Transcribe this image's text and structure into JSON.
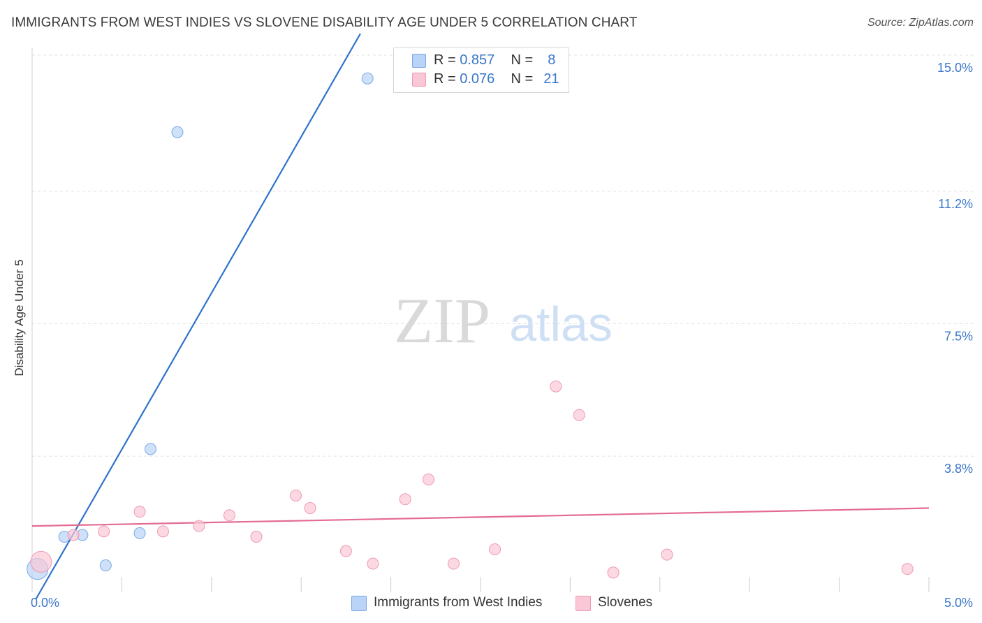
{
  "title": "IMMIGRANTS FROM WEST INDIES VS SLOVENE DISABILITY AGE UNDER 5 CORRELATION CHART",
  "source": "Source: ZipAtlas.com",
  "watermark": {
    "zip": "ZIP",
    "atlas": "atlas"
  },
  "legend": {
    "rows": [
      {
        "r_label": "R =",
        "r_value": "0.857",
        "n_label": "N =",
        "n_value": "8",
        "color": "#b9d4f7",
        "border": "#7aa8e6"
      },
      {
        "r_label": "R =",
        "r_value": "0.076",
        "n_label": "N =",
        "n_value": "21",
        "color": "#f9c7d6",
        "border": "#ee9ab3"
      }
    ]
  },
  "bottom_legend": [
    {
      "label": "Immigrants from West Indies",
      "color": "#b9d4f7",
      "border": "#7aa8e6"
    },
    {
      "label": "Slovenes",
      "color": "#f9c7d6",
      "border": "#ee9ab3"
    }
  ],
  "chart_data": {
    "type": "scatter",
    "xlabel": "",
    "ylabel": "Disability Age Under 5",
    "xlim": [
      0,
      5.0
    ],
    "ylim": [
      0,
      15.0
    ],
    "x_tick_labels": [
      "0.0%",
      "5.0%"
    ],
    "y_ticks": [
      3.8,
      7.5,
      11.2,
      15.0
    ],
    "y_tick_labels": [
      "3.8%",
      "7.5%",
      "11.2%",
      "15.0%"
    ],
    "grid": true,
    "series": [
      {
        "name": "Immigrants from West Indies",
        "color": "#b9d4f7",
        "stroke": "#7aa8e6",
        "line_color": "#2f72cc",
        "trend": [
          [
            0.02,
            -0.2
          ],
          [
            1.83,
            15.6
          ]
        ],
        "points": [
          {
            "x": 0.03,
            "y": 0.65,
            "big": true
          },
          {
            "x": 0.18,
            "y": 1.55
          },
          {
            "x": 0.28,
            "y": 1.6
          },
          {
            "x": 0.41,
            "y": 0.75
          },
          {
            "x": 0.6,
            "y": 1.65
          },
          {
            "x": 0.66,
            "y": 4.0
          },
          {
            "x": 0.81,
            "y": 12.85
          },
          {
            "x": 1.87,
            "y": 14.35
          }
        ]
      },
      {
        "name": "Slovenes",
        "color": "#f9c7d6",
        "stroke": "#ee9ab3",
        "line_color": "#e46b93",
        "trend": [
          [
            0.0,
            1.85
          ],
          [
            5.0,
            2.35
          ]
        ],
        "points": [
          {
            "x": 0.05,
            "y": 0.85,
            "big": true
          },
          {
            "x": 0.23,
            "y": 1.6
          },
          {
            "x": 0.4,
            "y": 1.7
          },
          {
            "x": 0.6,
            "y": 2.25
          },
          {
            "x": 0.73,
            "y": 1.7
          },
          {
            "x": 0.93,
            "y": 1.85
          },
          {
            "x": 1.1,
            "y": 2.15
          },
          {
            "x": 1.25,
            "y": 1.55
          },
          {
            "x": 1.47,
            "y": 2.7
          },
          {
            "x": 1.55,
            "y": 2.35
          },
          {
            "x": 1.75,
            "y": 1.15
          },
          {
            "x": 1.9,
            "y": 0.8
          },
          {
            "x": 2.08,
            "y": 2.6
          },
          {
            "x": 2.21,
            "y": 3.15
          },
          {
            "x": 2.35,
            "y": 0.8
          },
          {
            "x": 2.58,
            "y": 1.2
          },
          {
            "x": 2.92,
            "y": 5.75
          },
          {
            "x": 3.05,
            "y": 4.95
          },
          {
            "x": 3.24,
            "y": 0.55
          },
          {
            "x": 3.54,
            "y": 1.05
          },
          {
            "x": 4.88,
            "y": 0.65
          }
        ]
      }
    ]
  }
}
